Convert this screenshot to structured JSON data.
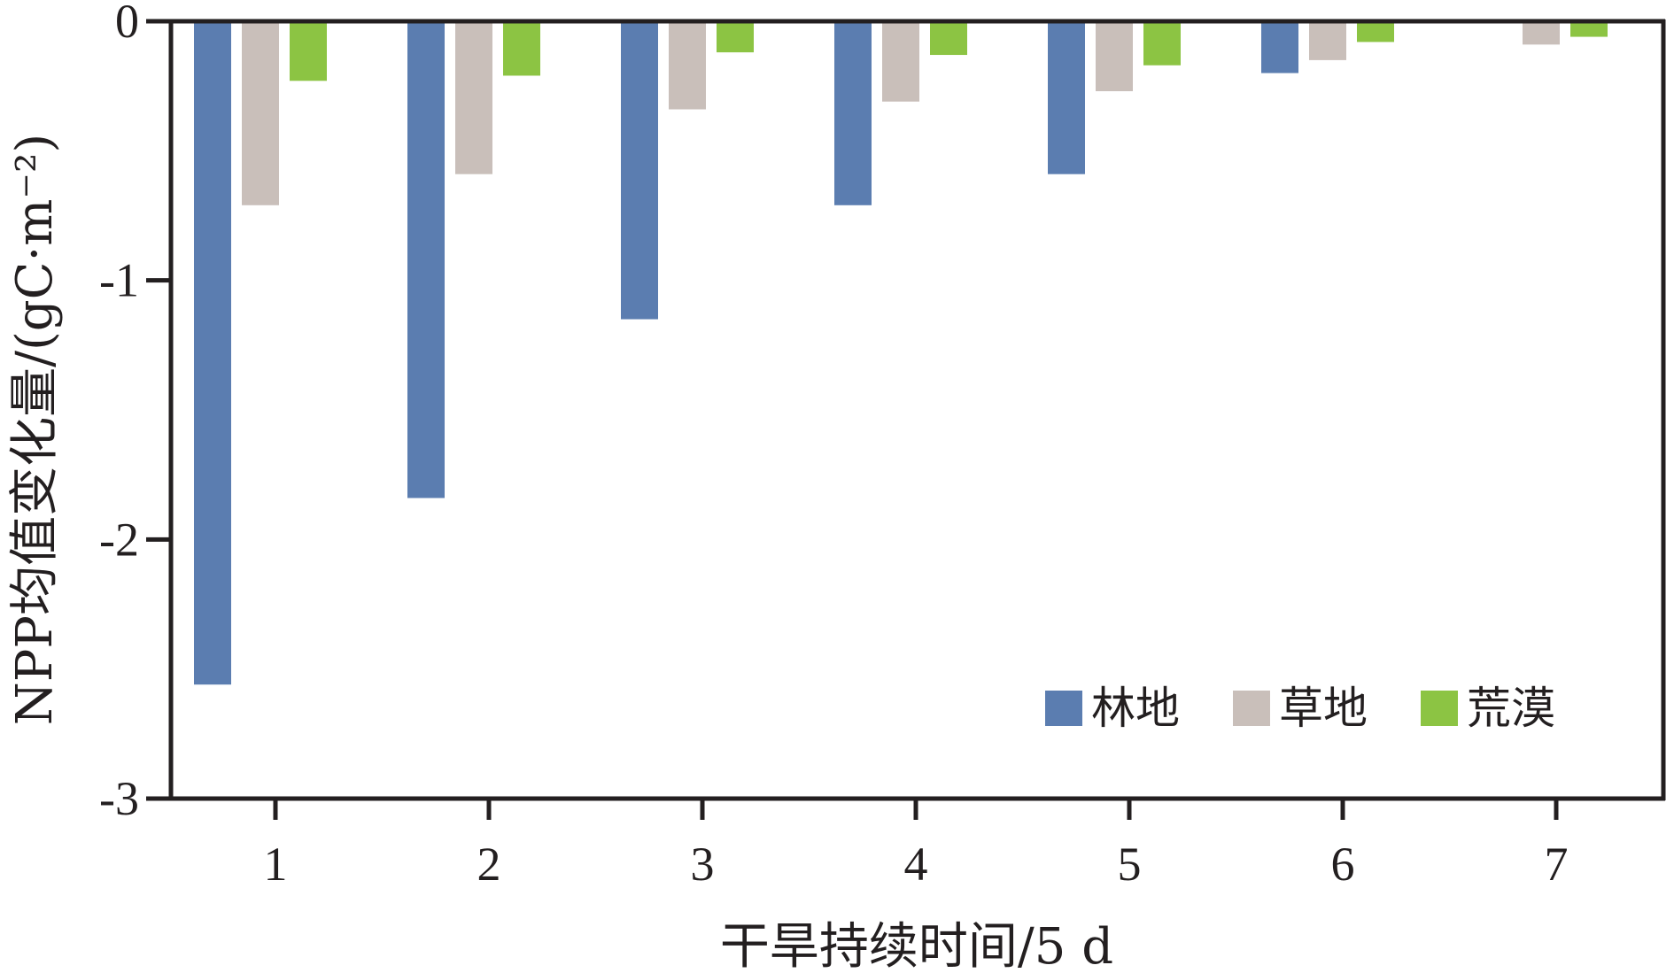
{
  "chart_data": {
    "type": "bar",
    "title": "",
    "xlabel": "干旱持续时间/5 d",
    "ylabel": "NPP均值变化量/(gC·m⁻²)",
    "categories": [
      "1",
      "2",
      "3",
      "4",
      "5",
      "6",
      "7"
    ],
    "ylim": [
      -3,
      0
    ],
    "yticks": [
      "0",
      "-1",
      "-2",
      "-3"
    ],
    "grid": false,
    "legend_position": "bottom-right",
    "series": [
      {
        "name": "林地",
        "color": "#5b7db0",
        "values": [
          -2.56,
          -1.84,
          -1.15,
          -0.71,
          -0.59,
          -0.2,
          0
        ]
      },
      {
        "name": "草地",
        "color": "#c9bfba",
        "values": [
          -0.71,
          -0.59,
          -0.34,
          -0.31,
          -0.27,
          -0.15,
          -0.09
        ]
      },
      {
        "name": "荒漠",
        "color": "#8cc443",
        "values": [
          -0.23,
          -0.21,
          -0.12,
          -0.13,
          -0.17,
          -0.08,
          -0.06
        ]
      }
    ]
  }
}
